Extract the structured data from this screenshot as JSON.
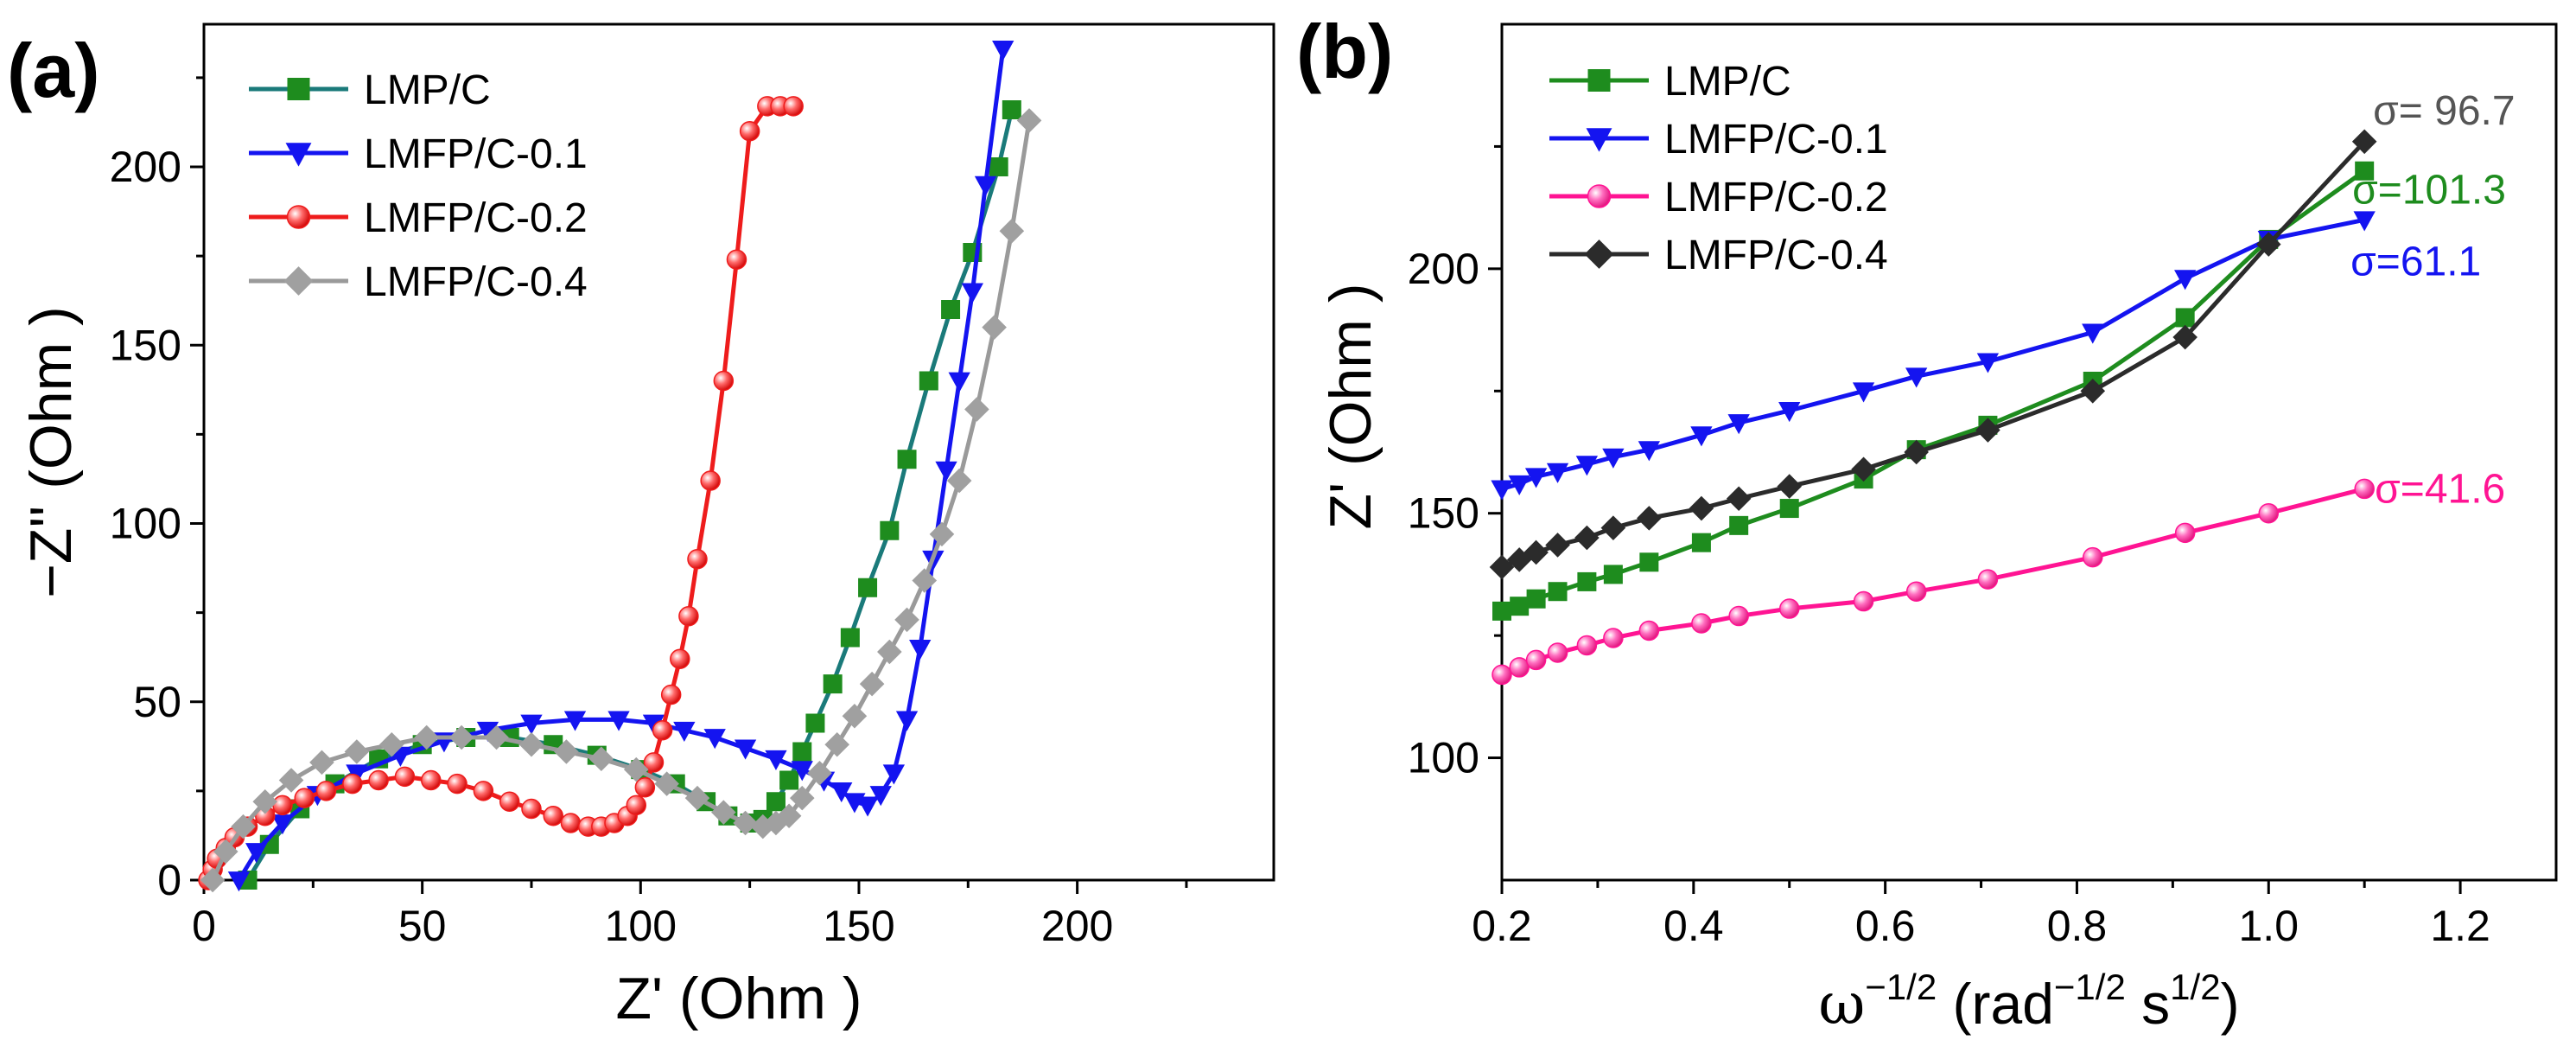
{
  "chart_data": [
    {
      "panel_label": "(a)",
      "type": "line",
      "title": "",
      "xlabel": "Z' (Ohm )",
      "ylabel": "−Z'' (Ohm )",
      "xlim": [
        0,
        245
      ],
      "ylim": [
        0,
        240
      ],
      "xticks": [
        0,
        50,
        100,
        150,
        200
      ],
      "yticks": [
        0,
        50,
        100,
        150,
        200
      ],
      "x_tick_labels": [
        "0",
        "50",
        "100",
        "150",
        "200"
      ],
      "y_tick_labels": [
        "0",
        "50",
        "100",
        "150",
        "200"
      ],
      "grid": false,
      "legend_position": "top-left",
      "series": [
        {
          "name": "LMP/C",
          "color": "#1a7a7a",
          "marker_color": "#1e8c1e",
          "marker": "square",
          "x": [
            10,
            15,
            22,
            30,
            40,
            50,
            60,
            70,
            80,
            90,
            100,
            108,
            115,
            120,
            125,
            128,
            131,
            134,
            137,
            140,
            144,
            148,
            152,
            157,
            161,
            166,
            171,
            176,
            182,
            185
          ],
          "y": [
            0,
            10,
            20,
            27,
            34,
            38,
            40,
            40,
            38,
            35,
            31,
            27,
            22,
            18,
            16,
            17,
            22,
            28,
            36,
            44,
            55,
            68,
            82,
            98,
            118,
            140,
            160,
            176,
            200,
            216
          ]
        },
        {
          "name": "LMFP/C-0.1",
          "color": "#1414f0",
          "marker_color": "#1414f0",
          "marker": "triangle-down",
          "x": [
            8,
            12,
            18,
            26,
            35,
            45,
            55,
            65,
            75,
            85,
            95,
            103,
            110,
            117,
            124,
            131,
            137,
            142,
            146,
            149,
            152,
            155,
            158,
            161,
            164,
            167,
            170,
            173,
            176,
            179,
            183
          ],
          "y": [
            0,
            8,
            16,
            24,
            30,
            35,
            39,
            42,
            44,
            45,
            45,
            44,
            42,
            40,
            37,
            34,
            31,
            28,
            25,
            22,
            21,
            24,
            30,
            45,
            65,
            90,
            115,
            140,
            165,
            195,
            233
          ]
        },
        {
          "name": "LMFP/C-0.2",
          "color": "#ee1c1c",
          "marker_color": "#e61e1e",
          "marker": "circle",
          "x": [
            1,
            2,
            3,
            5,
            7,
            10,
            14,
            18,
            23,
            28,
            34,
            40,
            46,
            52,
            58,
            64,
            70,
            75,
            80,
            84,
            88,
            91,
            94,
            97,
            99,
            101,
            103,
            105,
            107,
            109,
            111,
            113,
            116,
            119,
            122,
            125,
            129,
            132,
            135
          ],
          "y": [
            0,
            3,
            6,
            9,
            12,
            15,
            18,
            21,
            23,
            25,
            27,
            28,
            29,
            28,
            27,
            25,
            22,
            20,
            18,
            16,
            15,
            15,
            16,
            18,
            21,
            26,
            33,
            42,
            52,
            62,
            74,
            90,
            112,
            140,
            174,
            210,
            217,
            217,
            217
          ]
        },
        {
          "name": "LMFP/C-0.4",
          "color": "#9a9a9a",
          "marker_color": "#a0a0a0",
          "marker": "diamond",
          "x": [
            2,
            5,
            9,
            14,
            20,
            27,
            35,
            43,
            51,
            59,
            67,
            75,
            83,
            91,
            99,
            106,
            113,
            119,
            124,
            128,
            131,
            134,
            137,
            141,
            145,
            149,
            153,
            157,
            161,
            165,
            169,
            173,
            177,
            181,
            185,
            189
          ],
          "y": [
            0,
            8,
            15,
            22,
            28,
            33,
            36,
            38,
            40,
            40,
            40,
            38,
            36,
            34,
            31,
            27,
            23,
            19,
            16,
            15,
            16,
            18,
            23,
            30,
            38,
            46,
            55,
            64,
            73,
            84,
            97,
            112,
            132,
            155,
            182,
            213
          ]
        }
      ]
    },
    {
      "panel_label": "(b)",
      "type": "line",
      "title": "",
      "xlabel_main": "ω",
      "xlabel_exp1": "−1/2",
      "xlabel_mid": " (rad",
      "xlabel_exp2": "−1/2",
      "xlabel_mid2": " s",
      "xlabel_exp3": "1/2",
      "xlabel_end": ")",
      "ylabel": "Z' (Ohm )",
      "xlim": [
        0.2,
        1.3
      ],
      "ylim": [
        75,
        250
      ],
      "xticks": [
        0.2,
        0.4,
        0.6,
        0.8,
        1.0,
        1.2
      ],
      "yticks": [
        100,
        150,
        200
      ],
      "x_tick_labels": [
        "0.2",
        "0.4",
        "0.6",
        "0.8",
        "1.0",
        "1.2"
      ],
      "y_tick_labels": [
        "100",
        "150",
        "200"
      ],
      "grid": false,
      "legend_position": "top-left",
      "x": [
        0.2,
        0.2182,
        0.2357,
        0.2582,
        0.2887,
        0.3162,
        0.3536,
        0.4082,
        0.4472,
        0.5,
        0.5774,
        0.6325,
        0.7071,
        0.8165,
        0.9129,
        1.0,
        1.1
      ],
      "series": [
        {
          "name": "LMP/C",
          "color": "#1e8c1e",
          "marker": "square",
          "y": [
            130,
            131,
            132.5,
            134,
            136,
            137.5,
            140,
            144,
            147.5,
            151,
            157,
            163,
            168,
            177,
            190,
            206,
            220
          ],
          "annotation": "σ=101.3"
        },
        {
          "name": "LMFP/C-0.1",
          "color": "#1414f0",
          "marker": "triangle-down",
          "y": [
            155,
            156,
            157.5,
            158.5,
            160,
            161.5,
            163,
            166,
            168.5,
            171,
            175,
            178,
            181,
            187,
            198,
            206,
            210
          ],
          "annotation": "σ=61.1"
        },
        {
          "name": "LMFP/C-0.2",
          "color": "#ff1493",
          "marker": "circle",
          "y": [
            117,
            118.5,
            120,
            121.5,
            123,
            124.5,
            126,
            127.5,
            129,
            130.5,
            132,
            134,
            136.5,
            141,
            146,
            150,
            155
          ],
          "annotation": "σ=41.6"
        },
        {
          "name": "LMFP/C-0.4",
          "color": "#2b2b2b",
          "marker": "diamond",
          "y": [
            139,
            140.5,
            142,
            143.5,
            145,
            147,
            149,
            151,
            153,
            155.5,
            159,
            162.5,
            167,
            175,
            186,
            205,
            226
          ],
          "annotation": "σ= 96.7"
        }
      ]
    }
  ]
}
